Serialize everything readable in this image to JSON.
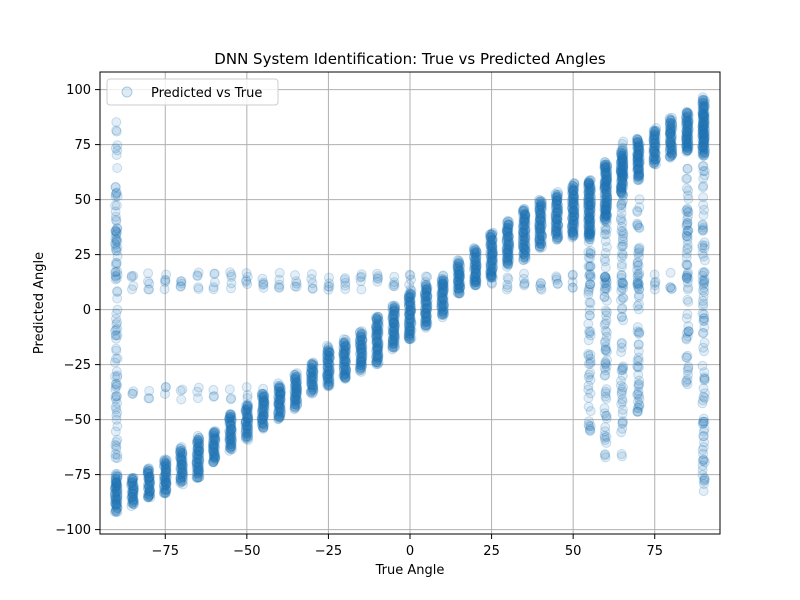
{
  "chart_data": {
    "type": "scatter",
    "title": "DNN System Identification: True vs Predicted Angles",
    "xlabel": "True Angle",
    "ylabel": "Predicted Angle",
    "xlim": [
      -95,
      95
    ],
    "ylim": [
      -102,
      108
    ],
    "xticks": [
      -75,
      -50,
      -25,
      0,
      25,
      50,
      75
    ],
    "xtick_labels": [
      "−75",
      "−50",
      "−25",
      "0",
      "25",
      "50",
      "75"
    ],
    "yticks": [
      -100,
      -75,
      -50,
      -25,
      0,
      25,
      50,
      75,
      100
    ],
    "ytick_labels": [
      "−100",
      "−75",
      "−50",
      "−25",
      "0",
      "25",
      "50",
      "75",
      "100"
    ],
    "grid": true,
    "legend_position": "top-left",
    "series": [
      {
        "name": "Predicted vs True",
        "color": "#1f77b4",
        "marker": "circle",
        "alpha": 0.12,
        "clusters": [
          {
            "x": -90,
            "y_min": -92,
            "y_max": -75
          },
          {
            "x": -85,
            "y_min": -89,
            "y_max": -76
          },
          {
            "x": -80,
            "y_min": -86,
            "y_max": -72
          },
          {
            "x": -75,
            "y_min": -84,
            "y_max": -68
          },
          {
            "x": -70,
            "y_min": -79,
            "y_max": -63
          },
          {
            "x": -65,
            "y_min": -77,
            "y_max": -58
          },
          {
            "x": -60,
            "y_min": -70,
            "y_max": -55
          },
          {
            "x": -55,
            "y_min": -64,
            "y_max": -47
          },
          {
            "x": -50,
            "y_min": -59,
            "y_max": -43
          },
          {
            "x": -45,
            "y_min": -54,
            "y_max": -38
          },
          {
            "x": -40,
            "y_min": -50,
            "y_max": -34
          },
          {
            "x": -35,
            "y_min": -45,
            "y_max": -29
          },
          {
            "x": -30,
            "y_min": -38,
            "y_max": -24
          },
          {
            "x": -25,
            "y_min": -35,
            "y_max": -17
          },
          {
            "x": -20,
            "y_min": -32,
            "y_max": -14
          },
          {
            "x": -15,
            "y_min": -28,
            "y_max": -10
          },
          {
            "x": -10,
            "y_min": -25,
            "y_max": -3
          },
          {
            "x": -5,
            "y_min": -18,
            "y_max": 2
          },
          {
            "x": 0,
            "y_min": -14,
            "y_max": 8
          },
          {
            "x": 5,
            "y_min": -8,
            "y_max": 11
          },
          {
            "x": 10,
            "y_min": -3,
            "y_max": 14
          },
          {
            "x": 15,
            "y_min": 7,
            "y_max": 22
          },
          {
            "x": 20,
            "y_min": 11,
            "y_max": 28
          },
          {
            "x": 25,
            "y_min": 14,
            "y_max": 35
          },
          {
            "x": 30,
            "y_min": 20,
            "y_max": 40
          },
          {
            "x": 35,
            "y_min": 23,
            "y_max": 46
          },
          {
            "x": 40,
            "y_min": 28,
            "y_max": 50
          },
          {
            "x": 45,
            "y_min": 32,
            "y_max": 53
          },
          {
            "x": 50,
            "y_min": 33,
            "y_max": 57
          },
          {
            "x": 55,
            "y_min": 33,
            "y_max": 59
          },
          {
            "x": 60,
            "y_min": 40,
            "y_max": 67
          },
          {
            "x": 65,
            "y_min": 52,
            "y_max": 72
          },
          {
            "x": 70,
            "y_min": 60,
            "y_max": 78
          },
          {
            "x": 75,
            "y_min": 66,
            "y_max": 82
          },
          {
            "x": 80,
            "y_min": 69,
            "y_max": 87
          },
          {
            "x": 85,
            "y_min": 72,
            "y_max": 90
          },
          {
            "x": 90,
            "y_min": 70,
            "y_max": 96
          }
        ],
        "spread_columns": [
          {
            "x": -90,
            "y_min": -82,
            "y_max": 86
          },
          {
            "x": 55,
            "y_min": -58,
            "y_max": 58
          },
          {
            "x": 60,
            "y_min": -68,
            "y_max": 70
          },
          {
            "x": 65,
            "y_min": -67,
            "y_max": 78
          },
          {
            "x": 70,
            "y_min": -48,
            "y_max": 79
          },
          {
            "x": 85,
            "y_min": -35,
            "y_max": 85
          },
          {
            "x": 90,
            "y_min": -83,
            "y_max": 95
          }
        ],
        "outlier_band_upper": {
          "x_min": -85,
          "x_max": 90,
          "y_center": 13,
          "y_spread": 4
        },
        "outlier_band_lower": {
          "x_min": -85,
          "x_max": -35,
          "y_center": -38,
          "y_spread": 3
        }
      }
    ]
  }
}
